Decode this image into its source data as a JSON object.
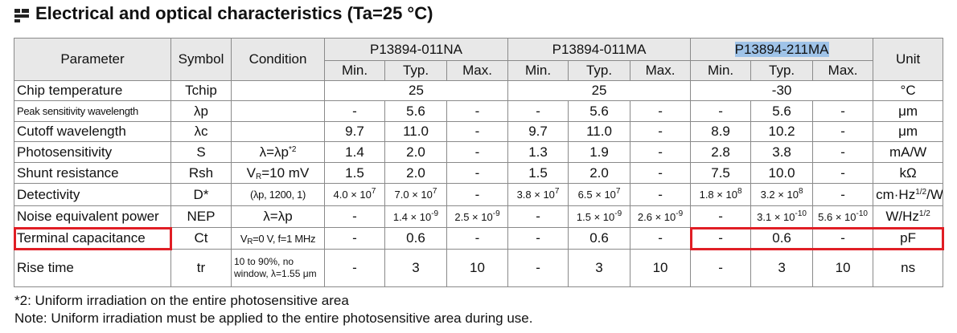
{
  "title": "Electrical and optical characteristics (Ta=25 °C)",
  "table": {
    "header": {
      "parameter": "Parameter",
      "symbol": "Symbol",
      "condition": "Condition",
      "unit": "Unit",
      "groups": [
        {
          "name": "P13894-011NA",
          "columns": [
            "Min.",
            "Typ.",
            "Max."
          ]
        },
        {
          "name": "P13894-011MA",
          "columns": [
            "Min.",
            "Typ.",
            "Max."
          ]
        },
        {
          "name": "P13894-211MA",
          "columns": [
            "Min.",
            "Typ.",
            "Max."
          ]
        }
      ]
    },
    "rows": [
      {
        "parameter": "Chip temperature",
        "symbol": "Tchip",
        "values": [
          "25",
          "25",
          "-30"
        ],
        "unit": "°C"
      },
      {
        "parameter": "Peak sensitivity wavelength",
        "symbol": "λp",
        "values": [
          "-",
          "5.6",
          "-",
          "-",
          "5.6",
          "-",
          "-",
          "5.6",
          "-"
        ],
        "unit": "μm"
      },
      {
        "parameter": "Cutoff wavelength",
        "symbol": "λc",
        "values": [
          "9.7",
          "11.0",
          "-",
          "9.7",
          "11.0",
          "-",
          "8.9",
          "10.2",
          "-"
        ],
        "unit": "μm"
      },
      {
        "parameter": "Photosensitivity",
        "symbol": "S",
        "condition": [
          "λ=λp",
          {
            "sup": "*2"
          }
        ],
        "values": [
          "1.4",
          "2.0",
          "-",
          "1.3",
          "1.9",
          "-",
          "2.8",
          "3.8",
          "-"
        ],
        "unit": "mA/W"
      },
      {
        "parameter": "Shunt resistance",
        "symbol": "Rsh",
        "condition": [
          "V",
          {
            "sub": "R"
          },
          "=10 mV"
        ],
        "values": [
          "1.5",
          "2.0",
          "-",
          "1.5",
          "2.0",
          "-",
          "7.5",
          "10.0",
          "-"
        ],
        "unit": "kΩ"
      },
      {
        "parameter": "Detectivity",
        "symbol": "D*",
        "condition": "(λp, 1200, 1)",
        "values": [
          [
            "4.0 × 10",
            {
              "sup": "7"
            }
          ],
          [
            "7.0 × 10",
            {
              "sup": "7"
            }
          ],
          "-",
          [
            "3.8 × 10",
            {
              "sup": "7"
            }
          ],
          [
            "6.5 × 10",
            {
              "sup": "7"
            }
          ],
          "-",
          [
            "1.8 × 10",
            {
              "sup": "8"
            }
          ],
          [
            "3.2 × 10",
            {
              "sup": "8"
            }
          ],
          "-"
        ],
        "unit": [
          "cm·Hz",
          {
            "sup": "1/2"
          },
          "/W"
        ]
      },
      {
        "parameter": "Noise equivalent power",
        "symbol": "NEP",
        "condition": "λ=λp",
        "values": [
          "-",
          [
            "1.4 × 10",
            {
              "sup": "-9"
            }
          ],
          [
            "2.5 × 10",
            {
              "sup": "-9"
            }
          ],
          "-",
          [
            "1.5 × 10",
            {
              "sup": "-9"
            }
          ],
          [
            "2.6 × 10",
            {
              "sup": "-9"
            }
          ],
          "-",
          [
            "3.1 × 10",
            {
              "sup": "-10"
            }
          ],
          [
            "5.6 × 10",
            {
              "sup": "-10"
            }
          ]
        ],
        "unit": [
          "W/Hz",
          {
            "sup": "1/2"
          }
        ]
      },
      {
        "parameter": "Terminal capacitance",
        "symbol": "Ct",
        "condition": [
          "V",
          {
            "sub": "R"
          },
          "=0 V, f=1 MHz"
        ],
        "values": [
          "-",
          "0.6",
          "-",
          "-",
          "0.6",
          "-",
          "-",
          "0.6",
          "-"
        ],
        "unit": "pF"
      },
      {
        "parameter": "Rise time",
        "symbol": "tr",
        "condition": "10 to 90%, no window, λ=1.55 μm",
        "values": [
          "-",
          "3",
          "10",
          "-",
          "3",
          "10",
          "-",
          "3",
          "10"
        ],
        "unit": "ns"
      }
    ]
  },
  "footnotes": [
    "*2: Uniform irradiation on the entire photosensitive area",
    "Note: Uniform irradiation must be applied to the entire photosensitive area during use."
  ]
}
